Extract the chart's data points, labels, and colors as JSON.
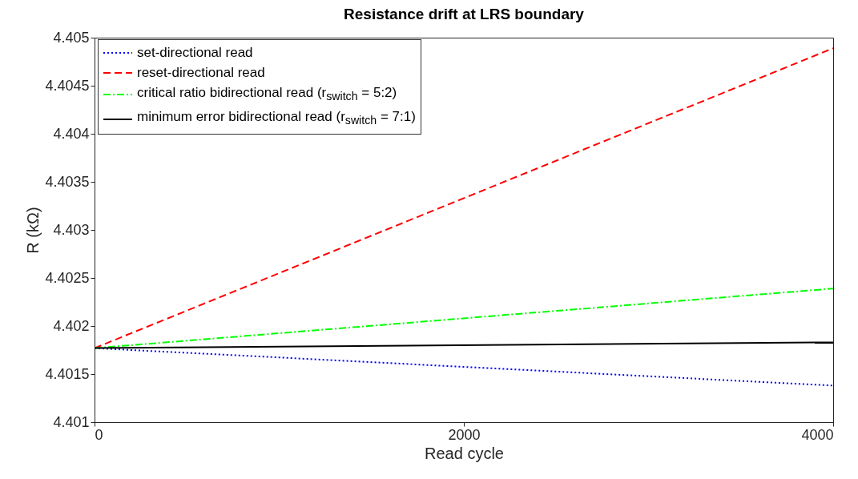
{
  "chart_data": {
    "type": "line",
    "title": "Resistance drift at LRS boundary",
    "xlabel": "Read cycle",
    "ylabel": "R (kΩ)",
    "x": [
      0,
      4000
    ],
    "xlim": [
      0,
      4000
    ],
    "xticks": [
      0,
      2000,
      4000
    ],
    "ylim": [
      4.401,
      4.405
    ],
    "yticks": [
      4.401,
      4.4015,
      4.402,
      4.4025,
      4.403,
      4.4035,
      4.404,
      4.4045,
      4.405
    ],
    "grid": false,
    "legend": "top left",
    "series": [
      {
        "name": "set-directional read",
        "color": "#0000ff",
        "line_style": "dotted",
        "values": [
          4.40177,
          4.40138
        ]
      },
      {
        "name": "reset-directional read",
        "color": "#ff0000",
        "line_style": "dashed",
        "values": [
          4.40177,
          4.40489
        ]
      },
      {
        "name": "critical ratio bidirectional read (r$_{switch}$ = 5:2)",
        "color": "#00ff00",
        "line_style": "dashdot",
        "values": [
          4.40177,
          4.40239
        ]
      },
      {
        "name": "minimum error bidirectional read (r$_{switch}$ = 7:1)",
        "color": "#000000",
        "line_style": "solid",
        "values": [
          4.40177,
          4.40183
        ]
      }
    ]
  }
}
